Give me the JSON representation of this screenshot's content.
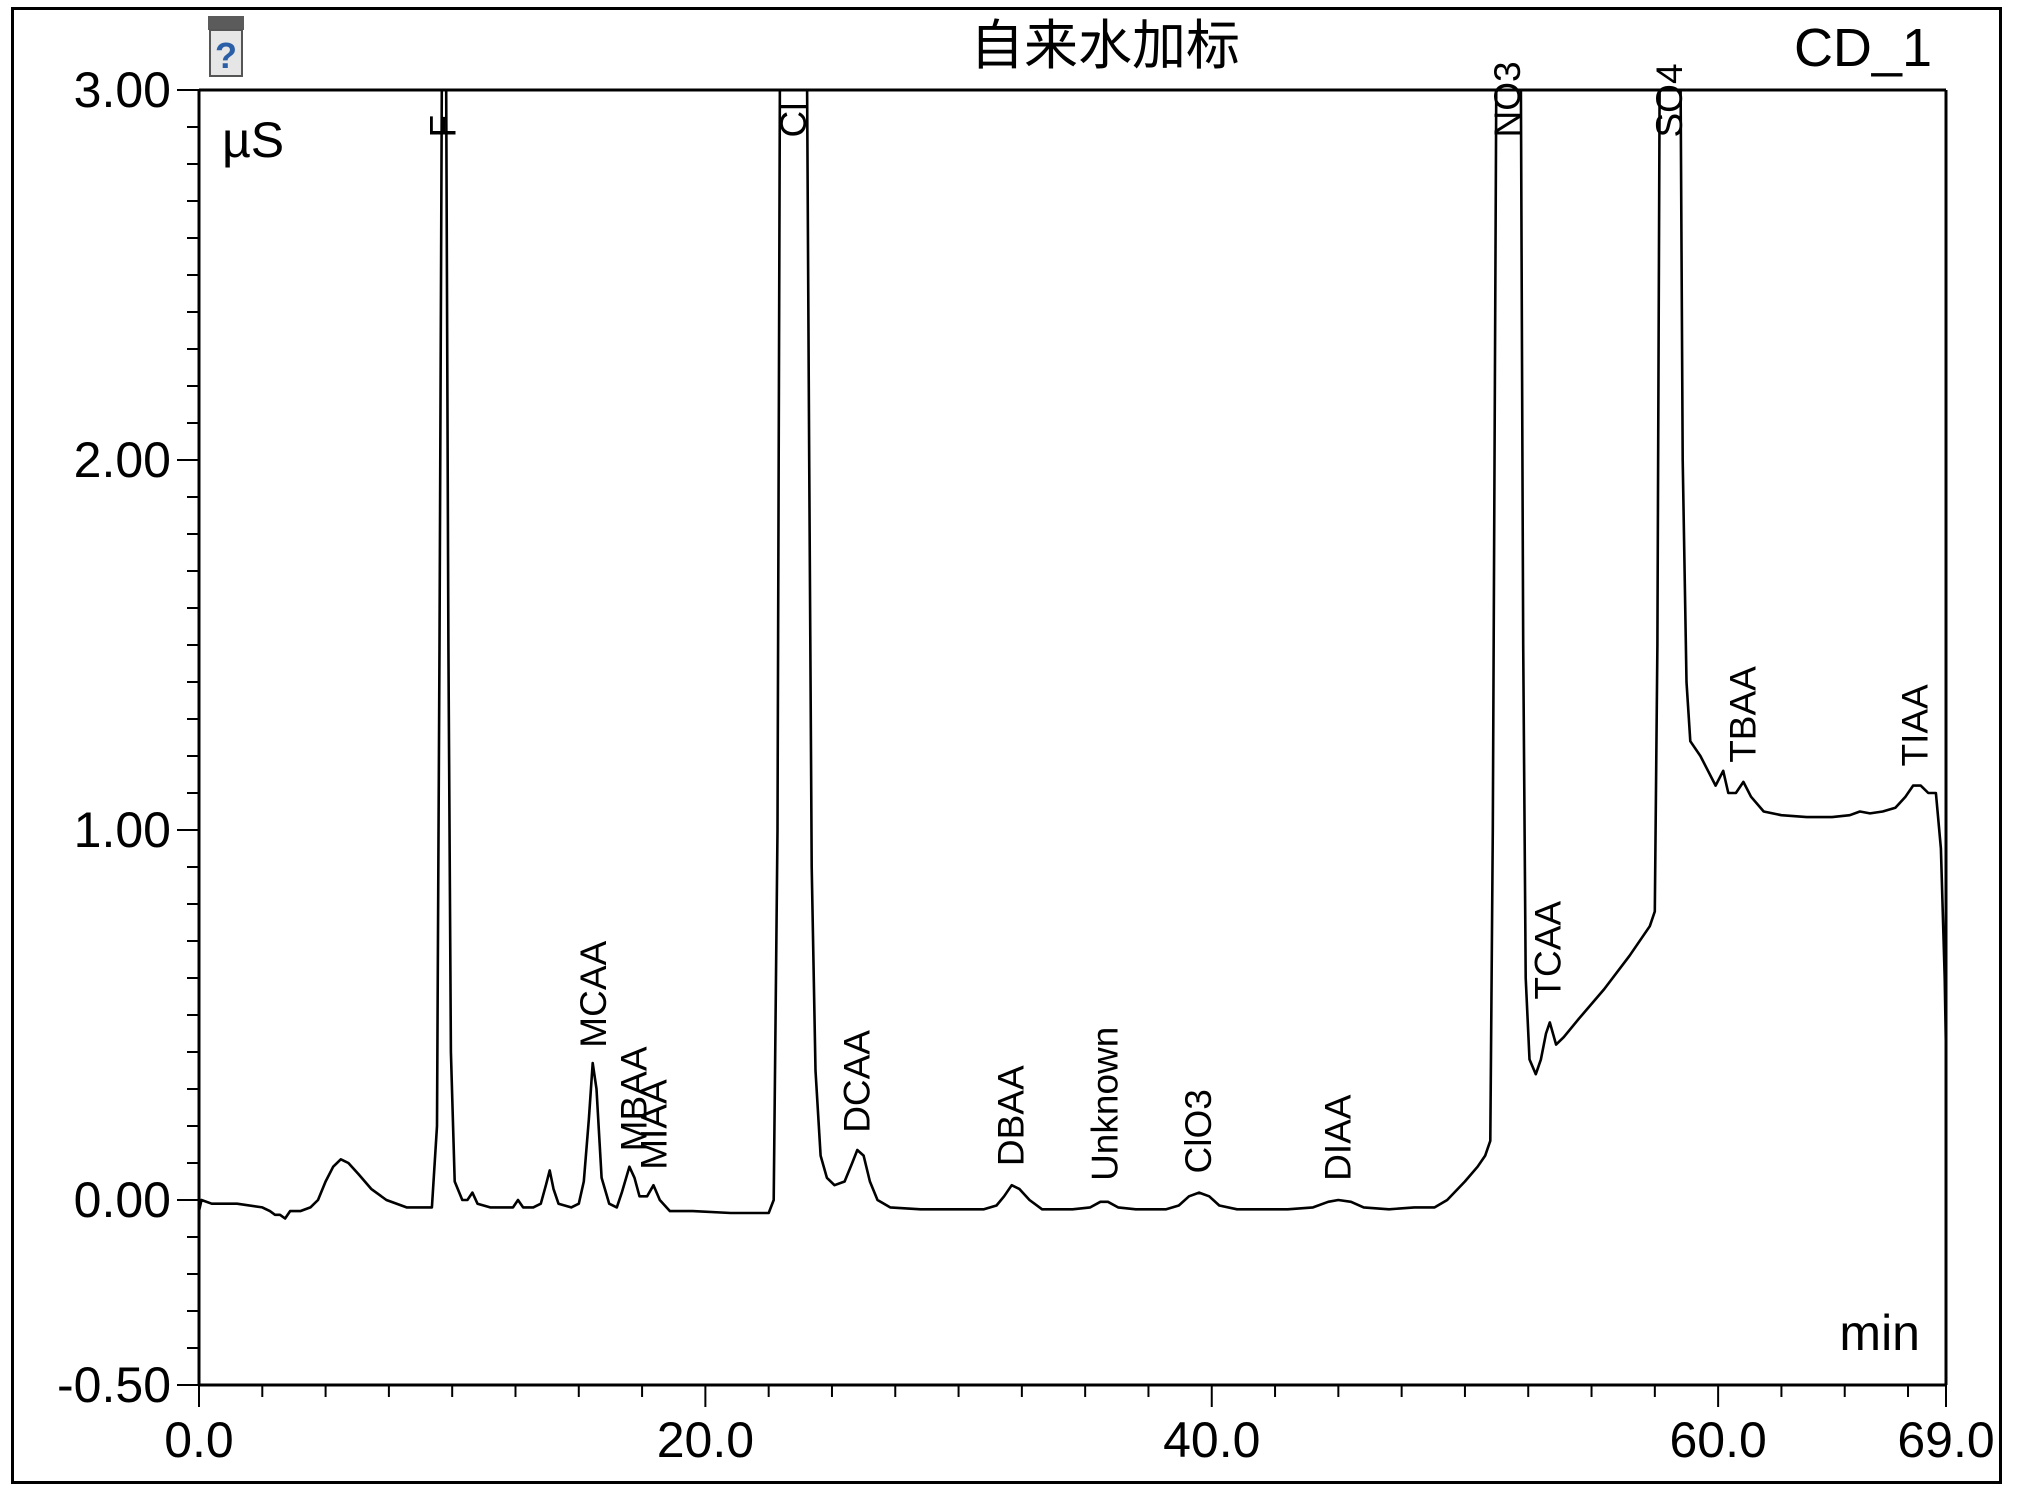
{
  "chart_data": {
    "type": "line",
    "title": "自来水加标",
    "channel": "CD_1",
    "ylabel": "µS",
    "xlabel": "min",
    "xlim": [
      0,
      69
    ],
    "ylim": [
      -0.5,
      3.0
    ],
    "x_ticks": [
      "0.0",
      "20.0",
      "40.0",
      "60.0",
      "69.0"
    ],
    "x_tick_values": [
      0,
      20,
      40,
      60,
      69
    ],
    "y_ticks": [
      "3.00",
      "2.00",
      "1.00",
      "0.00",
      "-0.50"
    ],
    "y_tick_values": [
      3.0,
      2.0,
      1.0,
      0.0,
      -0.5
    ],
    "grid": false,
    "series": [
      {
        "color": "#000000",
        "points": [
          [
            0.0,
            -0.03
          ],
          [
            0.1,
            0.0
          ],
          [
            0.5,
            -0.01
          ],
          [
            1.5,
            -0.01
          ],
          [
            2.5,
            -0.02
          ],
          [
            2.8,
            -0.03
          ],
          [
            3.0,
            -0.04
          ],
          [
            3.2,
            -0.04
          ],
          [
            3.4,
            -0.05
          ],
          [
            3.6,
            -0.03
          ],
          [
            4.0,
            -0.03
          ],
          [
            4.4,
            -0.02
          ],
          [
            4.7,
            0.0
          ],
          [
            5.0,
            0.05
          ],
          [
            5.3,
            0.09
          ],
          [
            5.6,
            0.11
          ],
          [
            5.9,
            0.1
          ],
          [
            6.3,
            0.07
          ],
          [
            6.8,
            0.03
          ],
          [
            7.4,
            0.0
          ],
          [
            8.2,
            -0.02
          ],
          [
            8.8,
            -0.02
          ],
          [
            9.2,
            -0.02
          ],
          [
            9.4,
            0.2
          ],
          [
            9.5,
            1.5
          ],
          [
            9.6,
            3.2
          ],
          [
            9.75,
            3.2
          ],
          [
            9.85,
            1.5
          ],
          [
            9.95,
            0.4
          ],
          [
            10.1,
            0.05
          ],
          [
            10.4,
            0.0
          ],
          [
            10.6,
            0.0
          ],
          [
            10.8,
            0.02
          ],
          [
            11.0,
            -0.01
          ],
          [
            11.5,
            -0.02
          ],
          [
            12.0,
            -0.02
          ],
          [
            12.4,
            -0.02
          ],
          [
            12.6,
            0.0
          ],
          [
            12.8,
            -0.02
          ],
          [
            13.2,
            -0.02
          ],
          [
            13.5,
            -0.01
          ],
          [
            13.7,
            0.04
          ],
          [
            13.85,
            0.08
          ],
          [
            14.0,
            0.03
          ],
          [
            14.2,
            -0.01
          ],
          [
            14.7,
            -0.02
          ],
          [
            15.0,
            -0.01
          ],
          [
            15.2,
            0.05
          ],
          [
            15.4,
            0.22
          ],
          [
            15.55,
            0.37
          ],
          [
            15.7,
            0.3
          ],
          [
            15.9,
            0.06
          ],
          [
            16.2,
            -0.01
          ],
          [
            16.5,
            -0.02
          ],
          [
            16.7,
            0.02
          ],
          [
            17.0,
            0.09
          ],
          [
            17.2,
            0.06
          ],
          [
            17.4,
            0.01
          ],
          [
            17.7,
            0.01
          ],
          [
            17.95,
            0.04
          ],
          [
            18.2,
            0.0
          ],
          [
            18.6,
            -0.03
          ],
          [
            19.5,
            -0.03
          ],
          [
            21.0,
            -0.035
          ],
          [
            22.5,
            -0.035
          ],
          [
            22.7,
            0.0
          ],
          [
            22.85,
            1.0
          ],
          [
            22.95,
            3.2
          ],
          [
            24.0,
            3.2
          ],
          [
            24.1,
            2.0
          ],
          [
            24.2,
            0.9
          ],
          [
            24.35,
            0.35
          ],
          [
            24.55,
            0.12
          ],
          [
            24.8,
            0.06
          ],
          [
            25.1,
            0.04
          ],
          [
            25.5,
            0.05
          ],
          [
            25.8,
            0.1
          ],
          [
            26.0,
            0.135
          ],
          [
            26.25,
            0.12
          ],
          [
            26.5,
            0.05
          ],
          [
            26.8,
            0.0
          ],
          [
            27.3,
            -0.02
          ],
          [
            28.5,
            -0.025
          ],
          [
            30.0,
            -0.025
          ],
          [
            31.0,
            -0.025
          ],
          [
            31.5,
            -0.015
          ],
          [
            31.8,
            0.01
          ],
          [
            32.1,
            0.04
          ],
          [
            32.4,
            0.03
          ],
          [
            32.8,
            0.0
          ],
          [
            33.3,
            -0.025
          ],
          [
            34.5,
            -0.025
          ],
          [
            35.2,
            -0.02
          ],
          [
            35.6,
            -0.005
          ],
          [
            35.9,
            -0.005
          ],
          [
            36.3,
            -0.02
          ],
          [
            37.0,
            -0.025
          ],
          [
            38.2,
            -0.025
          ],
          [
            38.7,
            -0.015
          ],
          [
            39.1,
            0.01
          ],
          [
            39.5,
            0.02
          ],
          [
            39.9,
            0.01
          ],
          [
            40.3,
            -0.015
          ],
          [
            41.0,
            -0.025
          ],
          [
            43.0,
            -0.025
          ],
          [
            44.0,
            -0.02
          ],
          [
            44.6,
            -0.005
          ],
          [
            45.0,
            0.0
          ],
          [
            45.5,
            -0.005
          ],
          [
            46.0,
            -0.02
          ],
          [
            47.0,
            -0.025
          ],
          [
            48.0,
            -0.02
          ],
          [
            48.4,
            -0.02
          ],
          [
            48.8,
            -0.02
          ],
          [
            49.3,
            0.0
          ],
          [
            50.0,
            0.05
          ],
          [
            50.5,
            0.09
          ],
          [
            50.8,
            0.12
          ],
          [
            51.0,
            0.16
          ],
          [
            51.1,
            1.0
          ],
          [
            51.25,
            3.2
          ],
          [
            52.2,
            3.2
          ],
          [
            52.3,
            1.5
          ],
          [
            52.4,
            0.6
          ],
          [
            52.55,
            0.38
          ],
          [
            52.8,
            0.34
          ],
          [
            53.0,
            0.38
          ],
          [
            53.2,
            0.45
          ],
          [
            53.35,
            0.48
          ],
          [
            53.6,
            0.42
          ],
          [
            53.9,
            0.44
          ],
          [
            54.5,
            0.49
          ],
          [
            55.5,
            0.57
          ],
          [
            56.5,
            0.66
          ],
          [
            57.3,
            0.74
          ],
          [
            57.5,
            0.78
          ],
          [
            57.6,
            1.5
          ],
          [
            57.7,
            3.2
          ],
          [
            58.5,
            3.2
          ],
          [
            58.6,
            2.0
          ],
          [
            58.75,
            1.4
          ],
          [
            58.9,
            1.24
          ],
          [
            59.3,
            1.2
          ],
          [
            59.6,
            1.16
          ],
          [
            59.9,
            1.12
          ],
          [
            60.2,
            1.16
          ],
          [
            60.4,
            1.1
          ],
          [
            60.7,
            1.1
          ],
          [
            61.0,
            1.13
          ],
          [
            61.3,
            1.09
          ],
          [
            61.8,
            1.05
          ],
          [
            62.5,
            1.04
          ],
          [
            63.5,
            1.035
          ],
          [
            64.5,
            1.035
          ],
          [
            65.2,
            1.04
          ],
          [
            65.6,
            1.05
          ],
          [
            66.0,
            1.045
          ],
          [
            66.5,
            1.05
          ],
          [
            67.0,
            1.06
          ],
          [
            67.4,
            1.09
          ],
          [
            67.7,
            1.12
          ],
          [
            68.0,
            1.12
          ],
          [
            68.3,
            1.1
          ],
          [
            68.6,
            1.1
          ],
          [
            68.8,
            0.95
          ],
          [
            68.95,
            0.6
          ],
          [
            69.0,
            0.4
          ]
        ]
      }
    ],
    "peak_labels": [
      {
        "text": "F",
        "x": 9.65,
        "y": 2.85
      },
      {
        "text": "MCAA",
        "x": 15.6,
        "y": 0.39
      },
      {
        "text": "MBAA",
        "x": 17.2,
        "y": 0.11
      },
      {
        "text": "MIAA",
        "x": 18.0,
        "y": 0.06
      },
      {
        "text": "Cl",
        "x": 23.5,
        "y": 2.85
      },
      {
        "text": "DCAA",
        "x": 26.0,
        "y": 0.16
      },
      {
        "text": "DBAA",
        "x": 32.1,
        "y": 0.07
      },
      {
        "text": "Unknown",
        "x": 35.8,
        "y": 0.03
      },
      {
        "text": "ClO3",
        "x": 39.5,
        "y": 0.05
      },
      {
        "text": "DIAA",
        "x": 45.0,
        "y": 0.03
      },
      {
        "text": "NO3",
        "x": 51.7,
        "y": 2.85
      },
      {
        "text": "TCAA",
        "x": 53.3,
        "y": 0.52
      },
      {
        "text": "SO4",
        "x": 58.1,
        "y": 2.85
      },
      {
        "text": "TBAA",
        "x": 61.0,
        "y": 1.16
      },
      {
        "text": "TIAA",
        "x": 67.8,
        "y": 1.15
      }
    ]
  },
  "icons": {
    "vial_icon": "vial-question-icon"
  }
}
